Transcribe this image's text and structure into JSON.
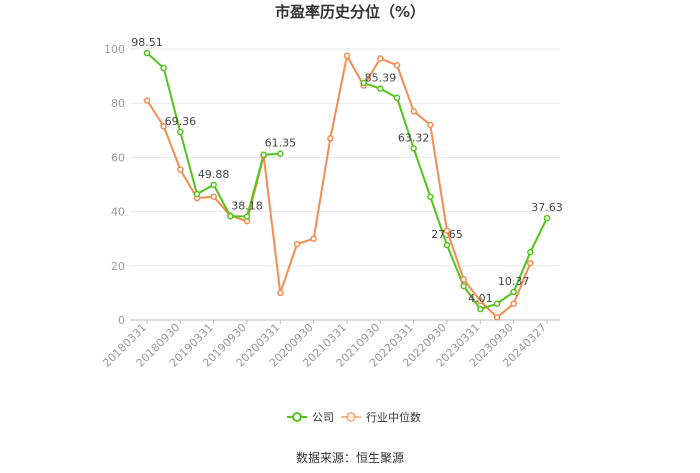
{
  "chart_data": {
    "type": "line",
    "title": "市盈率历史分位（%）",
    "source": "数据来源：恒生聚源",
    "ylim": [
      0,
      100
    ],
    "yticks": [
      0,
      20,
      40,
      60,
      80,
      100
    ],
    "xticks": [
      "20180331",
      "20180930",
      "20190331",
      "20190930",
      "20200331",
      "20200930",
      "20210331",
      "20210930",
      "20220331",
      "20220930",
      "20230331",
      "20230930",
      "20240327"
    ],
    "x": [
      "20180331",
      "20180630",
      "20180930",
      "20181231",
      "20190331",
      "20190630",
      "20190930",
      "20191231",
      "20200331",
      "20200630",
      "20200930",
      "20201231",
      "20210331",
      "20210630",
      "20210930",
      "20211231",
      "20220331",
      "20220630",
      "20220930",
      "20221231",
      "20230331",
      "20230630",
      "20230930",
      "20231231",
      "20240327"
    ],
    "series": [
      {
        "name": "公司",
        "color": "#52c41a",
        "values": [
          98.51,
          93.0,
          69.36,
          46.5,
          49.88,
          38.3,
          38.18,
          61.0,
          61.35,
          null,
          null,
          null,
          null,
          87.5,
          85.39,
          82.0,
          63.32,
          45.5,
          27.65,
          12.5,
          4.01,
          6.0,
          10.37,
          25.0,
          37.63
        ]
      },
      {
        "name": "行业中位数",
        "color": "#f58b4f",
        "values": [
          81.0,
          71.5,
          55.5,
          45.0,
          45.5,
          38.5,
          36.5,
          60.5,
          10.0,
          28.0,
          30.0,
          67.0,
          97.5,
          86.5,
          96.5,
          94.0,
          77.0,
          72.0,
          33.0,
          15.0,
          7.0,
          1.0,
          6.0,
          21.0,
          null
        ]
      }
    ],
    "data_labels": [
      {
        "series": 0,
        "index": 0,
        "text": "98.51"
      },
      {
        "series": 0,
        "index": 2,
        "text": "69.36"
      },
      {
        "series": 0,
        "index": 4,
        "text": "49.88"
      },
      {
        "series": 0,
        "index": 6,
        "text": "38.18"
      },
      {
        "series": 0,
        "index": 8,
        "text": "61.35"
      },
      {
        "series": 0,
        "index": 14,
        "text": "85.39"
      },
      {
        "series": 0,
        "index": 16,
        "text": "63.32"
      },
      {
        "series": 0,
        "index": 18,
        "text": "27.65"
      },
      {
        "series": 0,
        "index": 20,
        "text": "4.01"
      },
      {
        "series": 0,
        "index": 22,
        "text": "10.37"
      },
      {
        "series": 0,
        "index": 24,
        "text": "37.63"
      }
    ],
    "legend_position": "bottom",
    "grid": true
  }
}
